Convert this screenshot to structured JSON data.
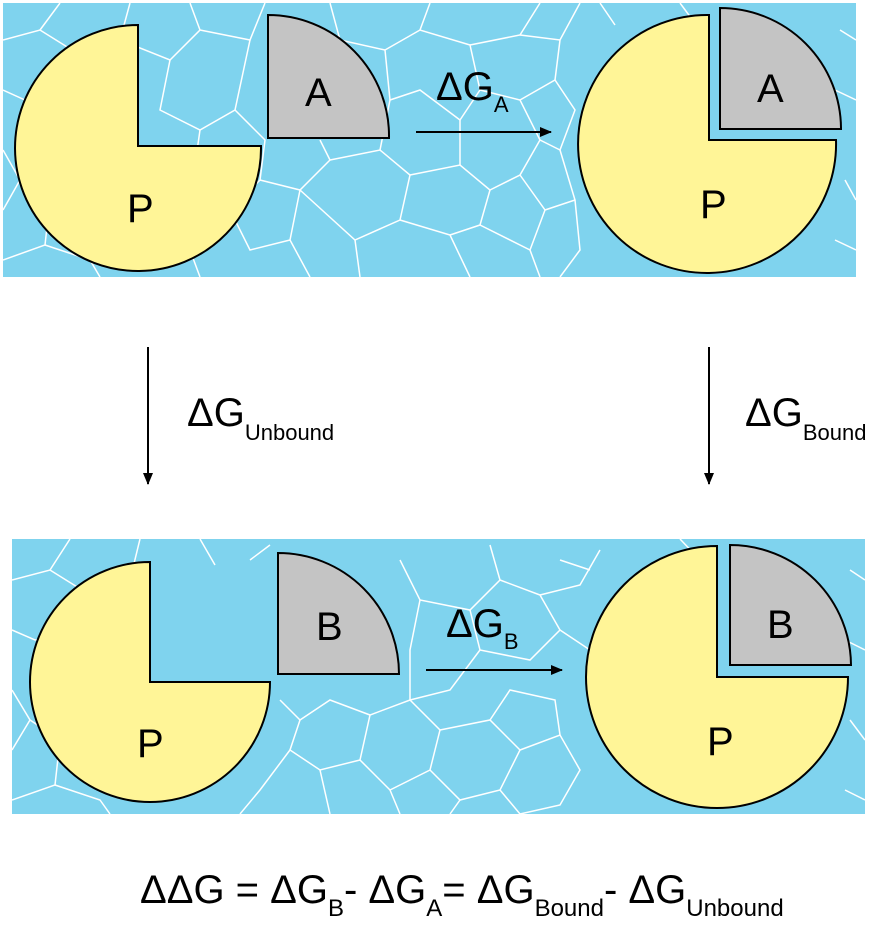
{
  "colors": {
    "water": "#7fd3ee",
    "water_lines": "#ffffff",
    "protein": "#fff597",
    "ligand": "#c4c4c4",
    "stroke": "#000000"
  },
  "top_panel": {
    "protein_left": "P",
    "ligand_left": "A",
    "protein_right": "P",
    "ligand_right": "A",
    "arrow_delta": "ΔG",
    "arrow_sub": "A"
  },
  "bottom_panel": {
    "protein_left": "P",
    "ligand_left": "B",
    "protein_right": "P",
    "ligand_right": "B",
    "arrow_delta": "ΔG",
    "arrow_sub": "B"
  },
  "vertical_arrows": {
    "left_delta": "ΔG",
    "left_sub": "Unbound",
    "right_delta": "ΔG",
    "right_sub": "Bound"
  },
  "equation": {
    "p1": "ΔΔG = ΔG",
    "s1": "B",
    "p2": "- ΔG",
    "s2": "A",
    "p3": "= ΔG",
    "s3": "Bound",
    "p4": "- ΔG",
    "s4": "Unbound"
  }
}
